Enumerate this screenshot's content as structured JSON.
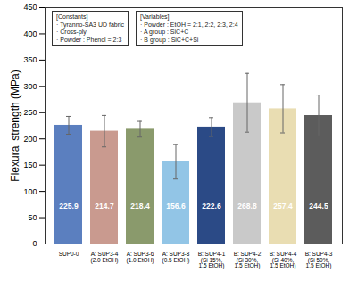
{
  "chart_data": {
    "type": "bar",
    "y_label": "Flexural strength (MPa)",
    "categories": [
      "SUP0-0",
      "A: SUP3-4 (2.0 EtOH)",
      "A: SUP3-6 (1.0 EtOH)",
      "A: SUP3-8 (0.5 EtOH)",
      "B: SUP4-1 (Si 15%, 1.5 EtOH)",
      "B: SUP4-2 (Si 30%, 1.5 EtOH)",
      "B: SUP4-4 (Si 40%, 1.5 EtOH)",
      "B: SUP4-3 (Si 50%, 1.5 EtOH)"
    ],
    "values": [
      225.9,
      214.7,
      218.4,
      156.6,
      222.6,
      268.8,
      257.4,
      244.5
    ],
    "errors": [
      17,
      30,
      15,
      33,
      18,
      56,
      46,
      39
    ],
    "colors": [
      "#5b7fbf",
      "#c99a8f",
      "#8a9a6c",
      "#92c5e6",
      "#2b4a86",
      "#c9c9c9",
      "#e9ddb2",
      "#5c5c5c"
    ],
    "ylim": [
      0,
      450
    ],
    "yticks": [
      0,
      50,
      100,
      150,
      200,
      250,
      300,
      350,
      400,
      450
    ],
    "grid": false,
    "data_labels": true,
    "annotation_boxes": [
      [
        "[Constants]",
        "· Tyranno-SA3 UD fabric",
        "· Cross-ply",
        "· Powder : Phenol = 2:3"
      ],
      [
        "[Variables]",
        "· Powder : EtOH = 2:1, 2:2, 2:3, 2:4",
        "· A group : SiC+C",
        "· B group : SiC+C+Si"
      ]
    ]
  }
}
